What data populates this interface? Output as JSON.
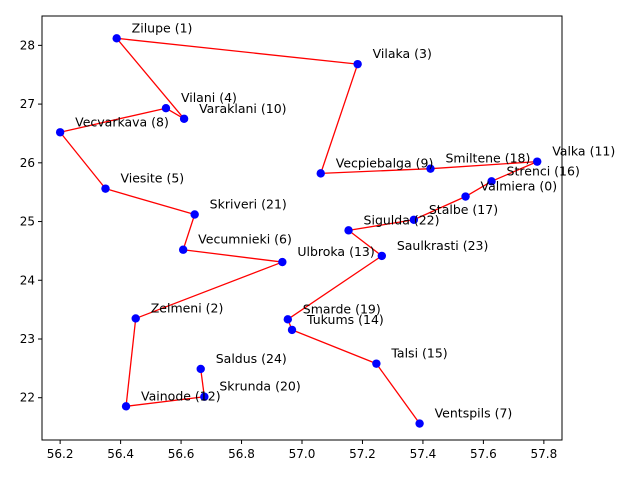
{
  "chart_data": {
    "type": "line",
    "title": "",
    "xlabel": "",
    "ylabel": "",
    "xlim": [
      56.14,
      57.86
    ],
    "ylim": [
      21.28,
      28.5
    ],
    "xticks": [
      56.2,
      56.4,
      56.6,
      56.8,
      57.0,
      57.2,
      57.4,
      57.6,
      57.8
    ],
    "xtick_labels": [
      "56.2",
      "56.4",
      "56.6",
      "56.8",
      "57.0",
      "57.2",
      "57.4",
      "57.6",
      "57.8"
    ],
    "yticks": [
      22,
      23,
      24,
      25,
      26,
      27,
      28
    ],
    "ytick_labels": [
      "22",
      "23",
      "24",
      "25",
      "26",
      "27",
      "28"
    ],
    "grid": false,
    "line_color": "#ff0000",
    "marker_color": "#0000ff",
    "points": [
      {
        "label": "Saldus (24)",
        "x": 56.665,
        "y": 22.49
      },
      {
        "label": "Skrunda (20)",
        "x": 56.677,
        "y": 22.017
      },
      {
        "label": "Vainode (12)",
        "x": 56.418,
        "y": 21.854
      },
      {
        "label": "Zelmeni (2)",
        "x": 56.45,
        "y": 23.35
      },
      {
        "label": "Ulbroka (13)",
        "x": 56.935,
        "y": 24.31
      },
      {
        "label": "Vecumnieki (6)",
        "x": 56.607,
        "y": 24.52
      },
      {
        "label": "Skriveri (21)",
        "x": 56.645,
        "y": 25.12
      },
      {
        "label": "Viesite (5)",
        "x": 56.35,
        "y": 25.56
      },
      {
        "label": "Vecvarkava (8)",
        "x": 56.2,
        "y": 26.52
      },
      {
        "label": "Vilani (4)",
        "x": 56.55,
        "y": 26.93
      },
      {
        "label": "Varaklani (10)",
        "x": 56.61,
        "y": 26.75
      },
      {
        "label": "Zilupe (1)",
        "x": 56.387,
        "y": 28.12
      },
      {
        "label": "Vilaka (3)",
        "x": 57.184,
        "y": 27.68
      },
      {
        "label": "Vecpiebalga (9)",
        "x": 57.062,
        "y": 25.82
      },
      {
        "label": "Smiltene (18)",
        "x": 57.425,
        "y": 25.9
      },
      {
        "label": "Valka (11)",
        "x": 57.778,
        "y": 26.02
      },
      {
        "label": "Strenci (16)",
        "x": 57.627,
        "y": 25.685
      },
      {
        "label": "Valmiera (0)",
        "x": 57.541,
        "y": 25.426
      },
      {
        "label": "Stalbe (17)",
        "x": 57.37,
        "y": 25.03
      },
      {
        "label": "Sigulda (22)",
        "x": 57.154,
        "y": 24.85
      },
      {
        "label": "Saulkrasti (23)",
        "x": 57.264,
        "y": 24.415
      },
      {
        "label": "Smarde (19)",
        "x": 56.953,
        "y": 23.335
      },
      {
        "label": "Tukums (14)",
        "x": 56.967,
        "y": 23.155
      },
      {
        "label": "Talsi (15)",
        "x": 57.246,
        "y": 22.58
      },
      {
        "label": "Ventspils (7)",
        "x": 57.389,
        "y": 21.56
      }
    ]
  }
}
